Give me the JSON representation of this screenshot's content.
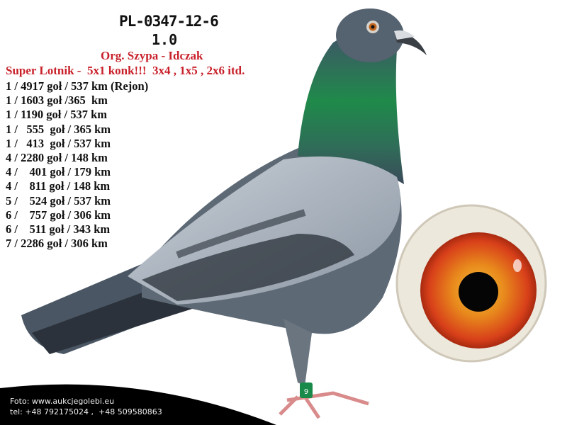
{
  "ring_number": "PL-0347-12-6",
  "sex": "1.0",
  "origin": "Org. Szypa - Idczak",
  "headline": "Super Lotnik -  5x1 konk!!!  3x4 , 1x5 , 2x6 itd.",
  "results": [
    "1 / 4917 goł / 537 km (Rejon)",
    "1 / 1603 goł /365  km",
    "1 / 1190 goł / 537 km",
    "1 /   555  goł / 365 km",
    "1 /   413  goł / 537 km",
    "4 / 2280 goł / 148 km",
    "4 /    401 goł / 179 km",
    "4 /    811 goł / 148 km",
    "5 /    524 goł / 537 km",
    "6 /    757 goł / 306 km",
    "6 /    511 goł / 343 km",
    "7 / 2286 goł / 306 km"
  ],
  "footer": {
    "photo": "Foto: www.aukcjegolebi.eu",
    "phone": "tel: +48 792175024 ,  +48 509580863"
  },
  "leg_band": "9",
  "colors": {
    "accent_red": "#c8202a",
    "text": "#111111",
    "footer_bg": "#000000"
  }
}
